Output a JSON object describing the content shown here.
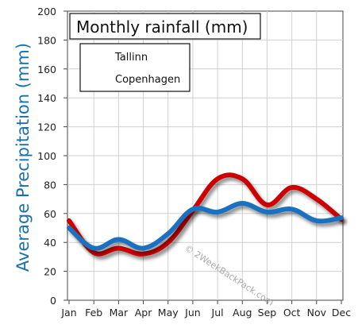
{
  "chart_data": {
    "type": "line",
    "title": "Monthly rainfall (mm)",
    "ylabel": "Average Precipitation (mm)",
    "xlabel": "",
    "categories": [
      "Jan",
      "Feb",
      "Mar",
      "Apr",
      "May",
      "Jun",
      "Jul",
      "Aug",
      "Sep",
      "Oct",
      "Nov",
      "Dec"
    ],
    "ylim": [
      0,
      200
    ],
    "yticks": [
      0,
      20,
      40,
      60,
      80,
      100,
      120,
      140,
      160,
      180,
      200
    ],
    "grid": true,
    "legend_position": "top-left",
    "series": [
      {
        "name": "Tallinn",
        "color": "#cc0000",
        "values": [
          55,
          33,
          36,
          32,
          40,
          62,
          84,
          84,
          66,
          78,
          70,
          56
        ]
      },
      {
        "name": "Copenhagen",
        "color": "#1a70c0",
        "values": [
          50,
          36,
          42,
          36,
          46,
          63,
          61,
          67,
          61,
          63,
          55,
          57
        ]
      }
    ],
    "watermark": "© 2WeekBackPack.com"
  }
}
